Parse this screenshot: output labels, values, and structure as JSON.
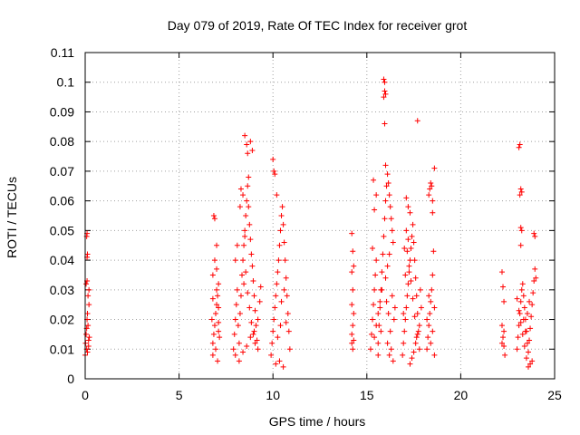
{
  "chart_data": {
    "type": "scatter",
    "title": "Day 079 of 2019, Rate Of TEC Index for receiver grot",
    "xlabel": "GPS time / hours",
    "ylabel": "ROTI / TECUs",
    "xlim": [
      0,
      25
    ],
    "ylim": [
      0,
      0.11
    ],
    "x_ticks": [
      "0",
      "5",
      "10",
      "15",
      "20",
      "25"
    ],
    "y_ticks": [
      "0",
      "0.01",
      "0.02",
      "0.03",
      "0.04",
      "0.05",
      "0.06",
      "0.07",
      "0.08",
      "0.09",
      "0.1",
      "0.11"
    ],
    "grid": true,
    "marker": "+",
    "color": "#ff0000",
    "series": [
      {
        "points": [
          [
            0.0,
            0.008
          ],
          [
            0.02,
            0.012
          ],
          [
            0.05,
            0.015
          ],
          [
            0.08,
            0.01
          ],
          [
            0.1,
            0.02
          ],
          [
            0.12,
            0.022
          ],
          [
            0.15,
            0.018
          ],
          [
            0.18,
            0.013
          ],
          [
            0.2,
            0.025
          ],
          [
            0.05,
            0.032
          ],
          [
            0.1,
            0.033
          ],
          [
            0.15,
            0.028
          ],
          [
            0.2,
            0.03
          ],
          [
            0.08,
            0.017
          ],
          [
            0.12,
            0.009
          ],
          [
            0.18,
            0.011
          ],
          [
            0.22,
            0.014
          ],
          [
            0.1,
            0.041
          ],
          [
            0.12,
            0.042
          ],
          [
            0.08,
            0.048
          ],
          [
            0.1,
            0.049
          ],
          [
            6.8,
            0.008
          ],
          [
            6.8,
            0.012
          ],
          [
            6.85,
            0.015
          ],
          [
            6.9,
            0.018
          ],
          [
            6.95,
            0.022
          ],
          [
            7.0,
            0.025
          ],
          [
            7.05,
            0.028
          ],
          [
            7.1,
            0.032
          ],
          [
            6.75,
            0.02
          ],
          [
            6.8,
            0.035
          ],
          [
            6.9,
            0.04
          ],
          [
            7.0,
            0.045
          ],
          [
            6.85,
            0.055
          ],
          [
            6.9,
            0.054
          ],
          [
            7.0,
            0.03
          ],
          [
            7.1,
            0.019
          ],
          [
            7.15,
            0.014
          ],
          [
            6.95,
            0.01
          ],
          [
            7.05,
            0.006
          ],
          [
            7.1,
            0.016
          ],
          [
            6.8,
            0.027
          ],
          [
            7.0,
            0.037
          ],
          [
            7.1,
            0.024
          ],
          [
            7.9,
            0.01
          ],
          [
            7.95,
            0.015
          ],
          [
            8.0,
            0.02
          ],
          [
            8.05,
            0.025
          ],
          [
            8.1,
            0.03
          ],
          [
            8.15,
            0.018
          ],
          [
            8.2,
            0.012
          ],
          [
            8.25,
            0.022
          ],
          [
            8.3,
            0.028
          ],
          [
            8.35,
            0.035
          ],
          [
            8.4,
            0.04
          ],
          [
            8.45,
            0.045
          ],
          [
            8.5,
            0.05
          ],
          [
            8.55,
            0.055
          ],
          [
            8.6,
            0.06
          ],
          [
            8.65,
            0.065
          ],
          [
            8.7,
            0.068
          ],
          [
            8.5,
            0.082
          ],
          [
            8.6,
            0.079
          ],
          [
            8.65,
            0.076
          ],
          [
            8.8,
            0.08
          ],
          [
            8.9,
            0.077
          ],
          [
            8.7,
            0.058
          ],
          [
            8.75,
            0.052
          ],
          [
            8.8,
            0.047
          ],
          [
            8.85,
            0.042
          ],
          [
            8.9,
            0.038
          ],
          [
            8.95,
            0.033
          ],
          [
            9.0,
            0.028
          ],
          [
            9.05,
            0.023
          ],
          [
            9.1,
            0.018
          ],
          [
            9.15,
            0.013
          ],
          [
            9.2,
            0.01
          ],
          [
            8.0,
            0.008
          ],
          [
            8.2,
            0.006
          ],
          [
            8.4,
            0.009
          ],
          [
            8.6,
            0.011
          ],
          [
            8.8,
            0.014
          ],
          [
            9.0,
            0.016
          ],
          [
            9.2,
            0.02
          ],
          [
            9.3,
            0.026
          ],
          [
            9.35,
            0.031
          ],
          [
            8.3,
            0.064
          ],
          [
            8.4,
            0.062
          ],
          [
            8.25,
            0.058
          ],
          [
            8.5,
            0.048
          ],
          [
            8.1,
            0.045
          ],
          [
            8.0,
            0.04
          ],
          [
            8.55,
            0.036
          ],
          [
            8.45,
            0.032
          ],
          [
            8.65,
            0.029
          ],
          [
            8.75,
            0.024
          ],
          [
            8.85,
            0.019
          ],
          [
            8.95,
            0.015
          ],
          [
            9.05,
            0.012
          ],
          [
            9.9,
            0.008
          ],
          [
            9.95,
            0.012
          ],
          [
            10.0,
            0.016
          ],
          [
            10.05,
            0.02
          ],
          [
            10.1,
            0.024
          ],
          [
            10.15,
            0.028
          ],
          [
            10.2,
            0.032
          ],
          [
            10.25,
            0.036
          ],
          [
            10.3,
            0.04
          ],
          [
            10.35,
            0.045
          ],
          [
            10.4,
            0.05
          ],
          [
            10.45,
            0.055
          ],
          [
            10.5,
            0.058
          ],
          [
            10.55,
            0.052
          ],
          [
            10.6,
            0.046
          ],
          [
            10.65,
            0.04
          ],
          [
            10.7,
            0.034
          ],
          [
            10.75,
            0.028
          ],
          [
            10.8,
            0.022
          ],
          [
            10.85,
            0.016
          ],
          [
            10.9,
            0.01
          ],
          [
            10.0,
            0.074
          ],
          [
            10.05,
            0.07
          ],
          [
            10.1,
            0.069
          ],
          [
            10.2,
            0.062
          ],
          [
            10.15,
            0.005
          ],
          [
            10.35,
            0.006
          ],
          [
            10.55,
            0.004
          ],
          [
            10.4,
            0.018
          ],
          [
            10.6,
            0.03
          ],
          [
            10.25,
            0.014
          ],
          [
            10.45,
            0.026
          ],
          [
            10.7,
            0.019
          ],
          [
            14.2,
            0.049
          ],
          [
            14.25,
            0.043
          ],
          [
            14.3,
            0.038
          ],
          [
            14.2,
            0.036
          ],
          [
            14.25,
            0.03
          ],
          [
            14.2,
            0.025
          ],
          [
            14.3,
            0.022
          ],
          [
            14.25,
            0.018
          ],
          [
            14.2,
            0.015
          ],
          [
            14.3,
            0.013
          ],
          [
            14.25,
            0.01
          ],
          [
            14.2,
            0.012
          ],
          [
            15.2,
            0.01
          ],
          [
            15.25,
            0.015
          ],
          [
            15.3,
            0.02
          ],
          [
            15.35,
            0.025
          ],
          [
            15.4,
            0.03
          ],
          [
            15.45,
            0.035
          ],
          [
            15.5,
            0.04
          ],
          [
            15.3,
            0.044
          ],
          [
            15.4,
            0.057
          ],
          [
            15.5,
            0.062
          ],
          [
            15.35,
            0.067
          ],
          [
            15.6,
            0.012
          ],
          [
            15.65,
            0.018
          ],
          [
            15.7,
            0.024
          ],
          [
            15.75,
            0.03
          ],
          [
            15.8,
            0.036
          ],
          [
            15.85,
            0.042
          ],
          [
            15.9,
            0.048
          ],
          [
            15.95,
            0.054
          ],
          [
            16.0,
            0.06
          ],
          [
            16.05,
            0.065
          ],
          [
            15.9,
            0.101
          ],
          [
            15.95,
            0.1
          ],
          [
            15.95,
            0.097
          ],
          [
            16.0,
            0.096
          ],
          [
            15.9,
            0.095
          ],
          [
            15.95,
            0.086
          ],
          [
            16.0,
            0.072
          ],
          [
            16.1,
            0.069
          ],
          [
            16.15,
            0.066
          ],
          [
            16.2,
            0.062
          ],
          [
            16.25,
            0.058
          ],
          [
            16.3,
            0.054
          ],
          [
            16.35,
            0.05
          ],
          [
            16.4,
            0.046
          ],
          [
            16.2,
            0.042
          ],
          [
            16.1,
            0.038
          ],
          [
            16.0,
            0.034
          ],
          [
            15.8,
            0.03
          ],
          [
            15.7,
            0.026
          ],
          [
            15.6,
            0.022
          ],
          [
            15.5,
            0.018
          ],
          [
            15.4,
            0.014
          ],
          [
            16.3,
            0.01
          ],
          [
            16.4,
            0.006
          ],
          [
            16.2,
            0.008
          ],
          [
            16.1,
            0.012
          ],
          [
            15.6,
            0.008
          ],
          [
            16.45,
            0.02
          ],
          [
            16.5,
            0.024
          ],
          [
            16.35,
            0.028
          ],
          [
            16.25,
            0.016
          ],
          [
            16.15,
            0.022
          ],
          [
            16.05,
            0.026
          ],
          [
            15.75,
            0.016
          ],
          [
            16.9,
            0.008
          ],
          [
            16.95,
            0.012
          ],
          [
            17.0,
            0.016
          ],
          [
            17.05,
            0.02
          ],
          [
            17.1,
            0.024
          ],
          [
            17.15,
            0.028
          ],
          [
            17.2,
            0.032
          ],
          [
            17.25,
            0.036
          ],
          [
            17.3,
            0.04
          ],
          [
            17.35,
            0.044
          ],
          [
            17.4,
            0.048
          ],
          [
            17.45,
            0.052
          ],
          [
            17.1,
            0.061
          ],
          [
            17.2,
            0.058
          ],
          [
            17.3,
            0.056
          ],
          [
            17.5,
            0.046
          ],
          [
            17.55,
            0.04
          ],
          [
            17.6,
            0.034
          ],
          [
            17.65,
            0.028
          ],
          [
            17.7,
            0.022
          ],
          [
            17.75,
            0.016
          ],
          [
            17.8,
            0.01
          ],
          [
            17.3,
            0.005
          ],
          [
            17.4,
            0.007
          ],
          [
            17.5,
            0.009
          ],
          [
            17.6,
            0.012
          ],
          [
            17.7,
            0.015
          ],
          [
            17.8,
            0.018
          ],
          [
            17.9,
            0.024
          ],
          [
            17.85,
            0.03
          ],
          [
            17.0,
            0.044
          ],
          [
            17.1,
            0.05
          ],
          [
            17.2,
            0.047
          ],
          [
            17.15,
            0.043
          ],
          [
            17.25,
            0.038
          ],
          [
            17.05,
            0.035
          ],
          [
            17.35,
            0.033
          ],
          [
            17.45,
            0.027
          ],
          [
            17.55,
            0.021
          ],
          [
            17.65,
            0.014
          ],
          [
            16.95,
            0.022
          ],
          [
            17.7,
            0.087
          ],
          [
            18.2,
            0.01
          ],
          [
            18.25,
            0.014
          ],
          [
            18.3,
            0.018
          ],
          [
            18.35,
            0.022
          ],
          [
            18.4,
            0.026
          ],
          [
            18.45,
            0.03
          ],
          [
            18.5,
            0.035
          ],
          [
            18.55,
            0.043
          ],
          [
            18.3,
            0.062
          ],
          [
            18.35,
            0.064
          ],
          [
            18.4,
            0.066
          ],
          [
            18.45,
            0.065
          ],
          [
            18.5,
            0.06
          ],
          [
            18.5,
            0.056
          ],
          [
            18.6,
            0.071
          ],
          [
            18.2,
            0.02
          ],
          [
            18.6,
            0.024
          ],
          [
            18.3,
            0.028
          ],
          [
            18.5,
            0.016
          ],
          [
            18.4,
            0.012
          ],
          [
            18.6,
            0.008
          ],
          [
            22.2,
            0.036
          ],
          [
            22.25,
            0.031
          ],
          [
            22.3,
            0.026
          ],
          [
            22.2,
            0.018
          ],
          [
            22.25,
            0.014
          ],
          [
            22.3,
            0.011
          ],
          [
            22.35,
            0.008
          ],
          [
            22.2,
            0.012
          ],
          [
            22.3,
            0.016
          ],
          [
            23.0,
            0.01
          ],
          [
            23.05,
            0.014
          ],
          [
            23.1,
            0.018
          ],
          [
            23.15,
            0.022
          ],
          [
            23.2,
            0.026
          ],
          [
            23.25,
            0.03
          ],
          [
            23.1,
            0.078
          ],
          [
            23.15,
            0.079
          ],
          [
            23.2,
            0.064
          ],
          [
            23.25,
            0.063
          ],
          [
            23.15,
            0.062
          ],
          [
            23.2,
            0.051
          ],
          [
            23.25,
            0.05
          ],
          [
            23.2,
            0.045
          ],
          [
            23.3,
            0.032
          ],
          [
            23.35,
            0.028
          ],
          [
            23.4,
            0.024
          ],
          [
            23.45,
            0.02
          ],
          [
            23.5,
            0.016
          ],
          [
            23.55,
            0.012
          ],
          [
            23.6,
            0.009
          ],
          [
            23.65,
            0.013
          ],
          [
            23.7,
            0.017
          ],
          [
            23.75,
            0.021
          ],
          [
            23.8,
            0.025
          ],
          [
            23.85,
            0.029
          ],
          [
            23.9,
            0.033
          ],
          [
            23.95,
            0.037
          ],
          [
            24.0,
            0.034
          ],
          [
            23.9,
            0.049
          ],
          [
            23.95,
            0.048
          ],
          [
            23.8,
            0.006
          ],
          [
            23.7,
            0.005
          ],
          [
            23.6,
            0.004
          ],
          [
            23.5,
            0.007
          ],
          [
            23.4,
            0.011
          ],
          [
            23.3,
            0.015
          ],
          [
            23.2,
            0.019
          ],
          [
            23.1,
            0.023
          ],
          [
            23.0,
            0.027
          ],
          [
            23.35,
            0.02
          ],
          [
            23.45,
            0.016
          ],
          [
            23.55,
            0.022
          ],
          [
            23.65,
            0.026
          ]
        ]
      }
    ]
  }
}
